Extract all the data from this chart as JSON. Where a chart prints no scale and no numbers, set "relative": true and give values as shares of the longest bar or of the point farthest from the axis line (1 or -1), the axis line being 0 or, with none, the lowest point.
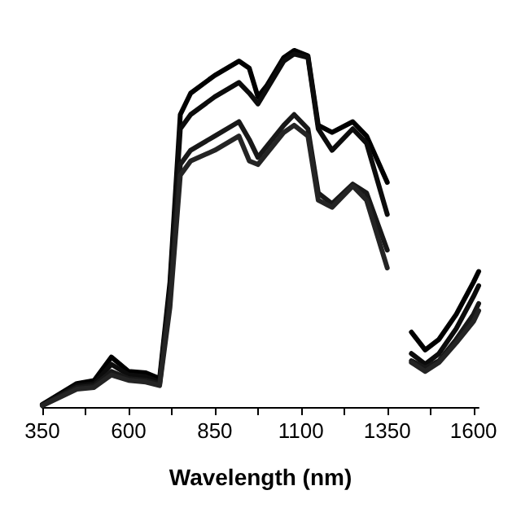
{
  "chart_data": {
    "type": "line",
    "xlabel": "Wavelength (nm)",
    "relative": true,
    "xlim": [
      350,
      1615
    ],
    "xticks": [
      350,
      {
        "value": 475,
        "label": null
      },
      600,
      {
        "value": 725,
        "label": null
      },
      850,
      {
        "value": 975,
        "label": null
      },
      1100,
      {
        "value": 1225,
        "label": null
      },
      1350,
      {
        "value": 1475,
        "label": null
      },
      1600
    ],
    "x": [
      350,
      450,
      500,
      550,
      600,
      650,
      690,
      720,
      750,
      780,
      850,
      920,
      950,
      975,
      1000,
      1050,
      1080,
      1120,
      1150,
      1190,
      1250,
      1290,
      1350,
      1385,
      1420,
      1460,
      1500,
      1550,
      1600,
      1615
    ],
    "series": [
      {
        "color": "#000000",
        "values": [
          0.007,
          0.066,
          0.074,
          0.14,
          0.1,
          0.096,
          0.08,
          0.35,
          0.82,
          0.88,
          0.93,
          0.97,
          0.95,
          0.87,
          0.9,
          0.98,
          1.0,
          0.985,
          0.79,
          0.77,
          0.8,
          0.76,
          0.63,
          null,
          0.21,
          0.16,
          0.19,
          0.26,
          0.35,
          0.38
        ]
      },
      {
        "color": "#0c0c0c",
        "values": [
          0.006,
          0.06,
          0.065,
          0.12,
          0.09,
          0.085,
          0.07,
          0.33,
          0.78,
          0.82,
          0.87,
          0.91,
          0.88,
          0.85,
          0.89,
          0.97,
          0.99,
          0.98,
          0.78,
          0.72,
          0.78,
          0.74,
          0.54,
          null,
          0.15,
          0.12,
          0.15,
          0.22,
          0.31,
          0.34
        ]
      },
      {
        "color": "#181818",
        "values": [
          0.005,
          0.055,
          0.06,
          0.1,
          0.08,
          0.075,
          0.065,
          0.31,
          0.68,
          0.72,
          0.76,
          0.8,
          0.75,
          0.7,
          0.73,
          0.79,
          0.82,
          0.78,
          0.6,
          0.57,
          0.625,
          0.6,
          0.44,
          null,
          0.13,
          0.11,
          0.13,
          0.19,
          0.26,
          0.29
        ]
      },
      {
        "color": "#242424",
        "values": [
          0.004,
          0.05,
          0.055,
          0.09,
          0.075,
          0.07,
          0.06,
          0.28,
          0.65,
          0.69,
          0.72,
          0.76,
          0.69,
          0.68,
          0.71,
          0.77,
          0.79,
          0.76,
          0.58,
          0.56,
          0.62,
          0.58,
          0.39,
          null,
          0.125,
          0.1,
          0.125,
          0.18,
          0.24,
          0.27
        ]
      }
    ],
    "marker": "none",
    "line_style": "solid",
    "grid": false
  }
}
